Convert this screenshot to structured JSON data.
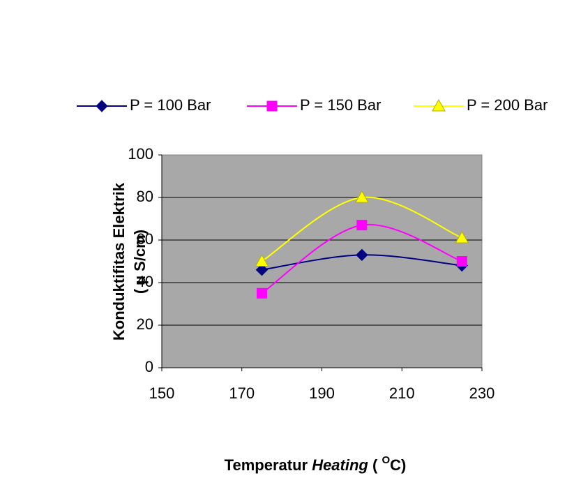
{
  "chart_data": {
    "type": "line",
    "x_label_parts": [
      "Temperatur ",
      "Heating",
      " ( ",
      "O",
      "C)"
    ],
    "y_label": [
      "Konduktifitas Elektrik",
      "( µ S/cm)"
    ],
    "x": [
      175,
      200,
      225
    ],
    "series": [
      {
        "name": "P = 100 Bar",
        "color": "#000080",
        "marker": "diamond",
        "values": [
          46,
          53,
          48
        ]
      },
      {
        "name": "P = 150 Bar",
        "color": "#ff00ff",
        "marker": "square",
        "values": [
          35,
          67,
          50
        ]
      },
      {
        "name": "P = 200 Bar",
        "color": "#ffff00",
        "marker": "triangle",
        "values": [
          50,
          80,
          61
        ]
      }
    ],
    "xlim": [
      150,
      230
    ],
    "xticks": [
      150,
      170,
      190,
      210,
      230
    ],
    "ylim": [
      0,
      100
    ],
    "yticks": [
      0,
      20,
      40,
      60,
      80,
      100
    ],
    "grid": true,
    "legend": "top",
    "smooth": true
  }
}
